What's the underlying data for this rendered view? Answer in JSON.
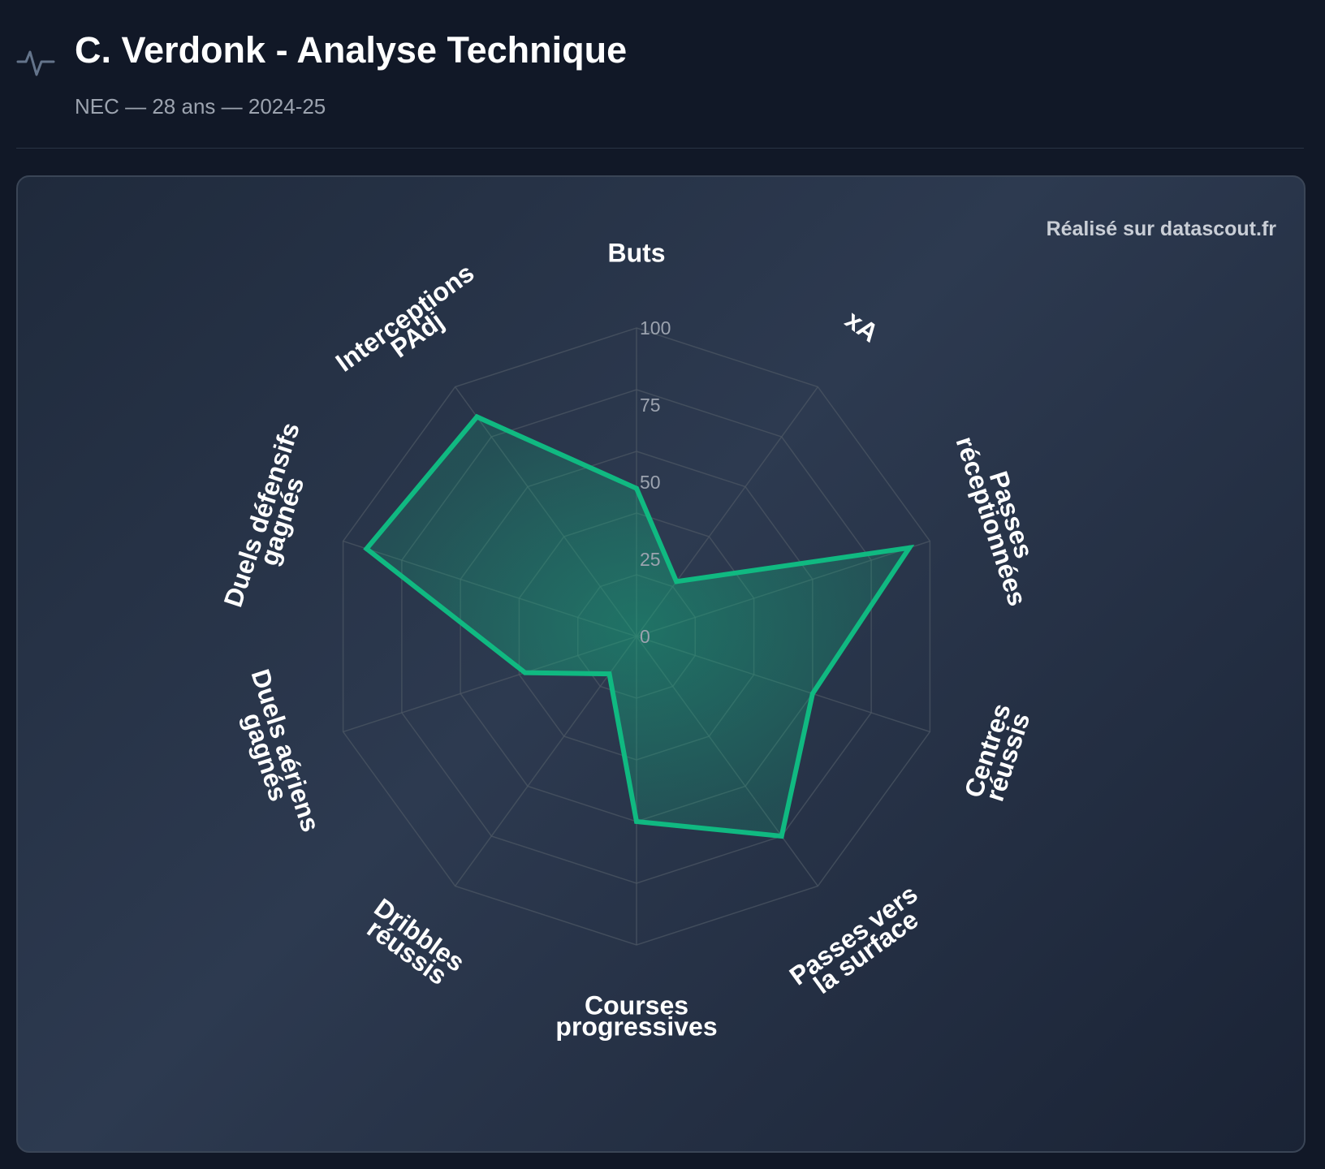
{
  "header": {
    "title": "C. Verdonk - Analyse Technique",
    "subtitle": "NEC — 28 ans — 2024-25",
    "icon": "activity-pulse-icon"
  },
  "card": {
    "credit": "Réalisé sur datascout.fr"
  },
  "colors": {
    "background": "#111827",
    "accent": "#10b981",
    "grid": "#4b5563",
    "tick_text": "#9ca3af"
  },
  "chart_data": {
    "type": "radar",
    "title": "",
    "axes": [
      [
        "Buts"
      ],
      [
        "xA"
      ],
      [
        "Passes",
        "réceptionnées"
      ],
      [
        "Centres",
        "réussis"
      ],
      [
        "Passes vers",
        "la surface"
      ],
      [
        "Courses",
        "progressives"
      ],
      [
        "Dribbles",
        "réussis"
      ],
      [
        "Duels aériens",
        "gagnés"
      ],
      [
        "Duels défensifs",
        "gagnés"
      ],
      [
        "Interceptions",
        "PAdj"
      ]
    ],
    "series": [
      {
        "values": [
          48,
          22,
          93,
          60,
          80,
          60,
          15,
          38,
          92,
          88
        ]
      }
    ],
    "r_range": [
      0,
      100
    ],
    "r_ticks": [
      0,
      25,
      50,
      75,
      100
    ],
    "grid": true
  }
}
